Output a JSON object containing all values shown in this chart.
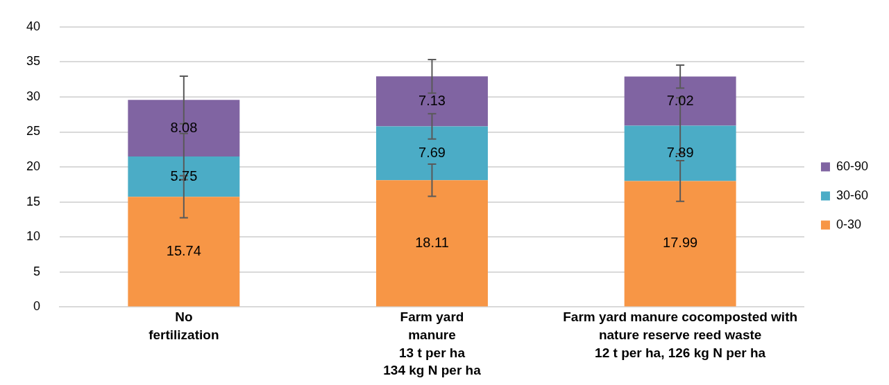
{
  "chart_data": {
    "type": "bar",
    "stacked": true,
    "categories": [
      "No\nfertilization",
      "Farm yard\nmanure\n13 t per ha\n134 kg N per ha",
      "Farm yard manure cocomposted with\nnature reserve reed waste\n12 t per ha, 126 kg N per ha"
    ],
    "series": [
      {
        "name": "0-30",
        "color": "#f79646",
        "values": [
          15.74,
          18.11,
          17.99
        ],
        "errors": [
          3.0,
          2.3,
          2.9
        ]
      },
      {
        "name": "30-60",
        "color": "#4bacc6",
        "values": [
          5.75,
          7.69,
          7.89
        ],
        "errors": [
          3.3,
          1.8,
          4.0
        ]
      },
      {
        "name": "60-90",
        "color": "#8064a2",
        "values": [
          8.08,
          7.13,
          7.02
        ],
        "errors": [
          3.4,
          2.4,
          1.65
        ]
      }
    ],
    "ylim": [
      0,
      40
    ],
    "yticks": [
      0,
      5,
      10,
      15,
      20,
      25,
      30,
      35,
      40
    ],
    "grid": "y",
    "legend": "right",
    "data_labels": true
  }
}
